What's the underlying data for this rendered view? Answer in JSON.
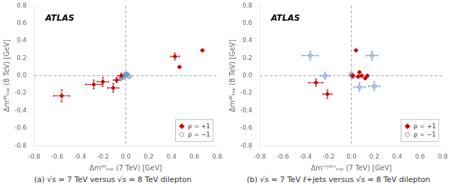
{
  "chart_data": [
    {
      "type": "scatter",
      "xlabel": "Δmᵈⁱˡₜₒₚ (7 TeV) [GeV]",
      "ylabel": "Δmᵈⁱˡₜₒₚ (8 TeV) [GeV]",
      "caption": "(a)  √s = 7 TeV versus  √s = 8 TeV dilepton",
      "annotations": [
        "ATLAS"
      ],
      "xlim": [
        -0.8,
        0.8
      ],
      "ylim": [
        -0.8,
        0.8
      ],
      "xticks": [
        -0.8,
        -0.6,
        -0.4,
        -0.2,
        {
          "value": 0,
          "label": "0.0"
        },
        0.2,
        0.4,
        0.6,
        0.8
      ],
      "yticks": [
        -0.8,
        -0.6,
        -0.4,
        -0.2,
        {
          "value": 0,
          "label": "0.0"
        },
        0.2,
        0.4,
        0.6,
        0.8
      ],
      "hlines": [
        0
      ],
      "vlines": [
        0
      ],
      "grid": false,
      "legend": "lower right",
      "series": [
        {
          "name": "ρ = +1",
          "color": "#cc0000",
          "marker": "diamond",
          "x": [
            -0.56,
            -0.28,
            -0.2,
            -0.11,
            0.43,
            0.47,
            0.67,
            -0.08,
            -0.04
          ],
          "y": [
            -0.23,
            -0.1,
            -0.07,
            -0.14,
            0.22,
            0.1,
            0.29,
            -0.05,
            0.0
          ],
          "xerr": [
            0.07,
            0.07,
            0.05,
            0.05,
            0.04,
            0.01,
            0.01,
            0.03,
            0.03
          ],
          "yerr": [
            0.07,
            0.05,
            0.05,
            0.05,
            0.04,
            0.01,
            0.01,
            0.03,
            0.03
          ]
        },
        {
          "name": "ρ = −1",
          "color": "#7799cc",
          "marker": "open_circle",
          "x": [
            -0.04,
            0.0,
            0.01,
            -0.02,
            0.01,
            0.03,
            -0.01,
            0.0
          ],
          "y": [
            -0.03,
            0.01,
            0.02,
            -0.02,
            0.01,
            -0.01,
            0.0,
            0.02
          ],
          "xerr": [
            0.02,
            0.02,
            0.02,
            0.02,
            0.02,
            0.02,
            0.02,
            0.02
          ],
          "yerr": [
            0.02,
            0.02,
            0.02,
            0.02,
            0.02,
            0.02,
            0.02,
            0.02
          ]
        }
      ]
    },
    {
      "type": "scatter",
      "xlabel": "Δmˡ⁺ʲᵉᵗˢₜₒₚ (7 TeV) [GeV]",
      "ylabel": "Δmᵈⁱˡₜₒₚ (8 TeV) [GeV]",
      "caption": "(b)  √s = 7 TeV ℓ+jets versus  √s = 8 TeV dilepton",
      "annotations": [
        "ATLAS"
      ],
      "xlim": [
        -0.8,
        0.8
      ],
      "ylim": [
        -0.8,
        0.8
      ],
      "xticks": [
        -0.8,
        -0.6,
        -0.4,
        -0.2,
        {
          "value": 0,
          "label": "0.0"
        },
        0.2,
        0.4,
        0.6,
        0.8
      ],
      "yticks": [
        -0.8,
        -0.6,
        -0.4,
        -0.2,
        {
          "value": 0,
          "label": "0.0"
        },
        0.2,
        0.4,
        0.6,
        0.8
      ],
      "hlines": [
        0
      ],
      "vlines": [
        0
      ],
      "grid": false,
      "legend": "lower right",
      "series": [
        {
          "name": "ρ = +1",
          "color": "#cc0000",
          "marker": "diamond",
          "x": [
            -0.31,
            -0.21,
            0.04,
            0.07,
            0.09,
            0.12,
            0.14,
            0.06,
            0.01
          ],
          "y": [
            -0.08,
            -0.21,
            0.29,
            0.04,
            0.0,
            -0.03,
            0.0,
            -0.01,
            0.0
          ],
          "xerr": [
            0.06,
            0.04,
            0.01,
            0.01,
            0.01,
            0.01,
            0.01,
            0.02,
            0.02
          ],
          "yerr": [
            0.04,
            0.05,
            0.01,
            0.01,
            0.01,
            0.01,
            0.01,
            0.02,
            0.02
          ]
        },
        {
          "name": "ρ = −1",
          "color": "#7799cc",
          "marker": "open_circle",
          "x": [
            -0.36,
            -0.23,
            0.07,
            0.18,
            0.2,
            0.01,
            0.0
          ],
          "y": [
            0.23,
            0.0,
            -0.13,
            0.23,
            -0.12,
            -0.01,
            0.02
          ],
          "xerr": [
            0.07,
            0.04,
            0.05,
            0.05,
            0.05,
            0.02,
            0.02
          ],
          "yerr": [
            0.05,
            0.04,
            0.05,
            0.05,
            0.05,
            0.02,
            0.02
          ]
        }
      ]
    }
  ]
}
